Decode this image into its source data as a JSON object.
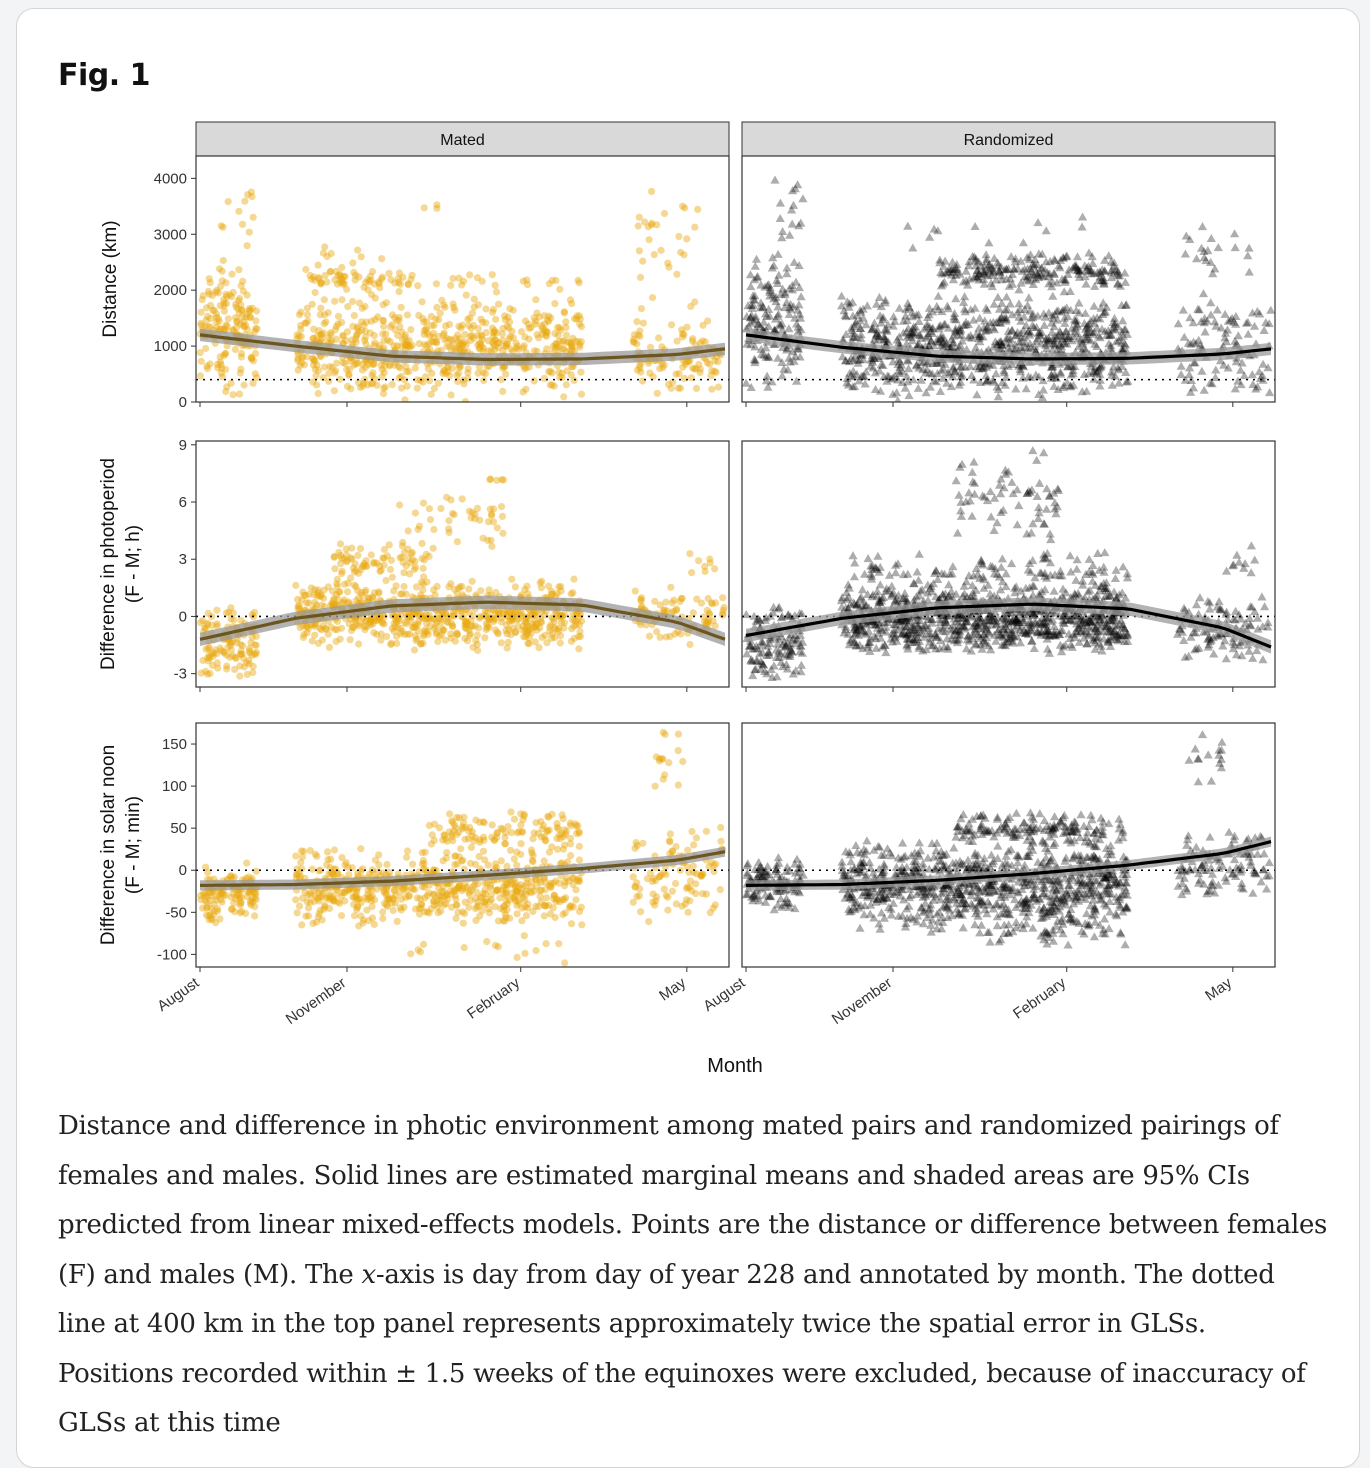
{
  "figure": {
    "title": "Fig. 1",
    "caption_parts": {
      "before_x": "Distance and difference in photic environment among mated pairs and randomized pairings of females and males. Solid lines are estimated marginal means and shaded areas are 95% CIs predicted from linear mixed-effects models. Points are the distance or difference between females (F) and males (M). The ",
      "x_italic": "x",
      "after_x": "-axis is day from day of year 228 and annotated by month. The dotted line at 400 km in the top panel represents approximately twice the spatial error in GLSs. Positions recorded within ± 1.5 weeks of the equinoxes were excluded, because of inaccuracy of GLSs at this time"
    }
  },
  "colors": {
    "mated": "#e8a90f",
    "randomized": "#000000",
    "fit_mated": "#6b5520",
    "fit_randomized": "#000000",
    "ci_band": "#9a9a9a",
    "strip_fill": "#d9d9d9"
  },
  "chart_data": {
    "type": "scatter",
    "facets": [
      "Mated",
      "Randomized"
    ],
    "xlabel": "Month",
    "x_unit": "day from day of year 228",
    "x_domain": [
      0,
      275
    ],
    "x_ticks": [
      {
        "label": "August",
        "value": 0
      },
      {
        "label": "November",
        "value": 77
      },
      {
        "label": "February",
        "value": 168
      },
      {
        "label": "May",
        "value": 255
      }
    ],
    "excluded_windows_days": [
      [
        30,
        50
      ],
      [
        200,
        226
      ]
    ],
    "rows": [
      {
        "key": "distance",
        "ylabel": [
          "Distance (km)"
        ],
        "ylim": [
          0,
          4400
        ],
        "yticks": [
          0,
          1000,
          2000,
          3000,
          4000
        ],
        "ytick_labels": [
          "0",
          "1000",
          "2000",
          "3000",
          "4000"
        ],
        "reference_line": 400,
        "fit_mated": {
          "x": [
            0,
            50,
            100,
            150,
            200,
            250,
            275
          ],
          "y": [
            1200,
            1000,
            820,
            760,
            770,
            850,
            950
          ]
        },
        "fit_randomized": {
          "x": [
            0,
            50,
            100,
            150,
            200,
            250,
            275
          ],
          "y": [
            1200,
            980,
            820,
            770,
            780,
            860,
            950
          ]
        },
        "ci_halfwidth": 110
      },
      {
        "key": "photoperiod",
        "ylabel": [
          "Difference in photoperiod",
          "(F - M; h)"
        ],
        "ylim": [
          -3.7,
          9.2
        ],
        "yticks": [
          -3,
          0,
          3,
          6,
          9
        ],
        "ytick_labels": [
          "-3",
          "0",
          "3",
          "6",
          "9"
        ],
        "reference_line": 0,
        "fit_mated": {
          "x": [
            0,
            50,
            100,
            150,
            200,
            250,
            275
          ],
          "y": [
            -1.2,
            -0.1,
            0.55,
            0.75,
            0.6,
            -0.3,
            -1.2
          ]
        },
        "fit_randomized": {
          "x": [
            0,
            50,
            100,
            150,
            200,
            250,
            275
          ],
          "y": [
            -1.0,
            -0.1,
            0.45,
            0.65,
            0.4,
            -0.6,
            -1.6
          ]
        },
        "ci_halfwidth": 0.35
      },
      {
        "key": "solar_noon",
        "ylabel": [
          "Difference in solar noon",
          "(F - M; min)"
        ],
        "ylim": [
          -115,
          175
        ],
        "yticks": [
          -100,
          -50,
          0,
          50,
          100,
          150
        ],
        "ytick_labels": [
          "-100",
          "-50",
          "0",
          "50",
          "100",
          "150"
        ],
        "reference_line": 0,
        "fit_mated": {
          "x": [
            0,
            50,
            100,
            150,
            200,
            250,
            275
          ],
          "y": [
            -18,
            -17,
            -13,
            -6,
            2,
            12,
            22
          ]
        },
        "fit_randomized": {
          "x": [
            0,
            50,
            100,
            150,
            200,
            250,
            275
          ],
          "y": [
            -18,
            -17,
            -12,
            -4,
            6,
            20,
            34
          ]
        },
        "ci_halfwidth": 6
      }
    ],
    "point_groups": {
      "distance": {
        "Mated": [
          {
            "x": [
              0,
              30
            ],
            "y": [
              0,
              2600
            ],
            "n": 170
          },
          {
            "x": [
              8,
              30
            ],
            "y": [
              2500,
              4050
            ],
            "n": 12
          },
          {
            "x": [
              50,
              200
            ],
            "y": [
              0,
              2000
            ],
            "n": 650
          },
          {
            "x": [
              55,
              115
            ],
            "y": [
              2000,
              2400
            ],
            "n": 60
          },
          {
            "x": [
              60,
              110
            ],
            "y": [
              2400,
              3000
            ],
            "n": 10
          },
          {
            "x": [
              115,
              125
            ],
            "y": [
              3400,
              3550
            ],
            "n": 3
          },
          {
            "x": [
              120,
              200
            ],
            "y": [
              2000,
              2300
            ],
            "n": 20
          },
          {
            "x": [
              226,
              275
            ],
            "y": [
              0,
              1600
            ],
            "n": 110
          },
          {
            "x": [
              228,
              262
            ],
            "y": [
              1600,
              3800
            ],
            "n": 30
          }
        ],
        "Randomized": [
          {
            "x": [
              0,
              30
            ],
            "y": [
              0,
              2800
            ],
            "n": 170
          },
          {
            "x": [
              15,
              30
            ],
            "y": [
              2800,
              4350
            ],
            "n": 15
          },
          {
            "x": [
              50,
              200
            ],
            "y": [
              0,
              2000
            ],
            "n": 850
          },
          {
            "x": [
              100,
              200
            ],
            "y": [
              2000,
              2700
            ],
            "n": 220
          },
          {
            "x": [
              60,
              190
            ],
            "y": [
              2700,
              3400
            ],
            "n": 12
          },
          {
            "x": [
              226,
              275
            ],
            "y": [
              0,
              2000
            ],
            "n": 110
          },
          {
            "x": [
              228,
              265
            ],
            "y": [
              2000,
              3200
            ],
            "n": 20
          }
        ]
      },
      "photoperiod": {
        "Mated": [
          {
            "x": [
              0,
              30
            ],
            "y": [
              -3.5,
              0.8
            ],
            "n": 120
          },
          {
            "x": [
              50,
              200
            ],
            "y": [
              -1.8,
              2.0
            ],
            "n": 700
          },
          {
            "x": [
              70,
              125
            ],
            "y": [
              1.5,
              4.0
            ],
            "n": 80
          },
          {
            "x": [
              100,
              160
            ],
            "y": [
              3.5,
              6.5
            ],
            "n": 40
          },
          {
            "x": [
              150,
              160
            ],
            "y": [
              6.5,
              8.0
            ],
            "n": 5
          },
          {
            "x": [
              226,
              275
            ],
            "y": [
              -1.8,
              2.0
            ],
            "n": 90
          },
          {
            "x": [
              255,
              270
            ],
            "y": [
              2.0,
              3.4
            ],
            "n": 8
          }
        ],
        "Randomized": [
          {
            "x": [
              0,
              30
            ],
            "y": [
              -3.7,
              0.8
            ],
            "n": 130
          },
          {
            "x": [
              50,
              200
            ],
            "y": [
              -2.0,
              1.8
            ],
            "n": 950
          },
          {
            "x": [
              55,
              200
            ],
            "y": [
              1.0,
              3.5
            ],
            "n": 120
          },
          {
            "x": [
              110,
              165
            ],
            "y": [
              3.5,
              9.0
            ],
            "n": 70
          },
          {
            "x": [
              226,
              275
            ],
            "y": [
              -2.5,
              1.2
            ],
            "n": 110
          },
          {
            "x": [
              250,
              268
            ],
            "y": [
              1.0,
              4.6
            ],
            "n": 10
          }
        ]
      },
      "solar_noon": {
        "Mated": [
          {
            "x": [
              0,
              30
            ],
            "y": [
              -65,
              12
            ],
            "n": 120
          },
          {
            "x": [
              50,
              200
            ],
            "y": [
              -70,
              30
            ],
            "n": 650
          },
          {
            "x": [
              120,
              200
            ],
            "y": [
              20,
              72
            ],
            "n": 120
          },
          {
            "x": [
              100,
              200
            ],
            "y": [
              -115,
              -70
            ],
            "n": 15
          },
          {
            "x": [
              226,
              275
            ],
            "y": [
              -70,
              60
            ],
            "n": 100
          },
          {
            "x": [
              238,
              255
            ],
            "y": [
              90,
              175
            ],
            "n": 15
          }
        ],
        "Randomized": [
          {
            "x": [
              0,
              30
            ],
            "y": [
              -50,
              20
            ],
            "n": 130
          },
          {
            "x": [
              50,
              200
            ],
            "y": [
              -75,
              40
            ],
            "n": 900
          },
          {
            "x": [
              110,
              200
            ],
            "y": [
              30,
              70
            ],
            "n": 150
          },
          {
            "x": [
              120,
              200
            ],
            "y": [
              -90,
              -60
            ],
            "n": 40
          },
          {
            "x": [
              226,
              275
            ],
            "y": [
              -40,
              50
            ],
            "n": 110
          },
          {
            "x": [
              232,
              250
            ],
            "y": [
              90,
              175
            ],
            "n": 15
          }
        ]
      }
    }
  }
}
